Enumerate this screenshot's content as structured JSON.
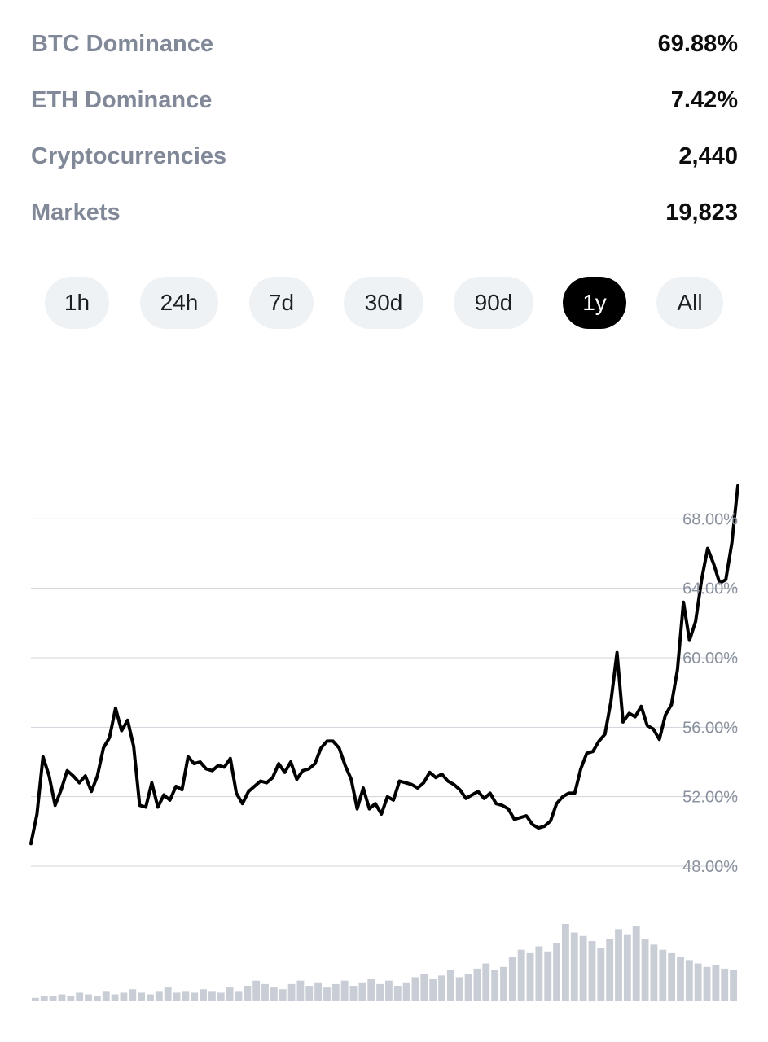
{
  "stats": [
    {
      "label": "BTC Dominance",
      "value": "69.88%"
    },
    {
      "label": "ETH Dominance",
      "value": "7.42%"
    },
    {
      "label": "Cryptocurrencies",
      "value": "2,440"
    },
    {
      "label": "Markets",
      "value": "19,823"
    }
  ],
  "range_tabs": [
    {
      "label": "1h",
      "active": false
    },
    {
      "label": "24h",
      "active": false
    },
    {
      "label": "7d",
      "active": false
    },
    {
      "label": "30d",
      "active": false
    },
    {
      "label": "90d",
      "active": false
    },
    {
      "label": "1y",
      "active": true
    },
    {
      "label": "All",
      "active": false
    }
  ],
  "colors": {
    "line": "#000000",
    "grid": "#cfd3d9",
    "volume": "#c9ced6",
    "label": "#818999",
    "tab_bg": "#eff2f5",
    "tab_active_bg": "#000000"
  },
  "chart_data": {
    "type": "line",
    "y_ticks": [
      "68.00%",
      "64.00%",
      "60.00%",
      "56.00%",
      "52.00%",
      "48.00%"
    ],
    "y_tick_values": [
      68,
      64,
      60,
      56,
      52,
      48
    ],
    "ylim": [
      46.5,
      70.5
    ],
    "grid": true,
    "series": [
      {
        "values": [
          49.3,
          51,
          54.3,
          53.2,
          51.5,
          52.4,
          53.5,
          53.2,
          52.8,
          53.2,
          52.3,
          53.2,
          54.8,
          55.4,
          57.1,
          55.8,
          56.4,
          54.9,
          51.5,
          51.4,
          52.8,
          51.4,
          52.1,
          51.8,
          52.6,
          52.4,
          54.3,
          53.9,
          54.0,
          53.6,
          53.5,
          53.8,
          53.7,
          54.2,
          52.2,
          51.6,
          52.3,
          52.6,
          52.9,
          52.8,
          53.1,
          53.9,
          53.4,
          54.0,
          53.0,
          53.5,
          53.6,
          53.9,
          54.8,
          55.2,
          55.2,
          54.8,
          53.8,
          53.0,
          51.3,
          52.5,
          51.3,
          51.6,
          51.0,
          52.0,
          51.8,
          52.9,
          52.8,
          52.7,
          52.5,
          52.8,
          53.4,
          53.1,
          53.3,
          52.9,
          52.7,
          52.4,
          51.9,
          52.1,
          52.3,
          51.9,
          52.2,
          51.6,
          51.5,
          51.3,
          50.7,
          50.8,
          50.9,
          50.4,
          50.2,
          50.3,
          50.6,
          51.6,
          52.0,
          52.2,
          52.2,
          53.6,
          54.5,
          54.6,
          55.2,
          55.6,
          57.5,
          60.3,
          56.3,
          56.8,
          56.6,
          57.2,
          56.1,
          55.9,
          55.3,
          56.7,
          57.3,
          59.3,
          63.2,
          61.0,
          62.1,
          64.5,
          66.3,
          65.4,
          64.3,
          64.5,
          66.6,
          69.9
        ]
      }
    ],
    "volume_series": [
      2,
      3,
      3,
      4,
      3,
      5,
      4,
      3,
      6,
      4,
      5,
      7,
      5,
      4,
      6,
      8,
      5,
      6,
      5,
      7,
      6,
      5,
      8,
      6,
      9,
      12,
      10,
      8,
      7,
      10,
      12,
      9,
      11,
      8,
      10,
      12,
      9,
      11,
      13,
      10,
      12,
      9,
      11,
      14,
      16,
      13,
      15,
      18,
      14,
      16,
      19,
      22,
      18,
      20,
      26,
      30,
      28,
      32,
      29,
      34,
      45,
      40,
      38,
      35,
      31,
      36,
      42,
      39,
      44,
      36,
      33,
      30,
      28,
      26,
      24,
      22,
      20,
      21,
      19,
      18
    ]
  }
}
